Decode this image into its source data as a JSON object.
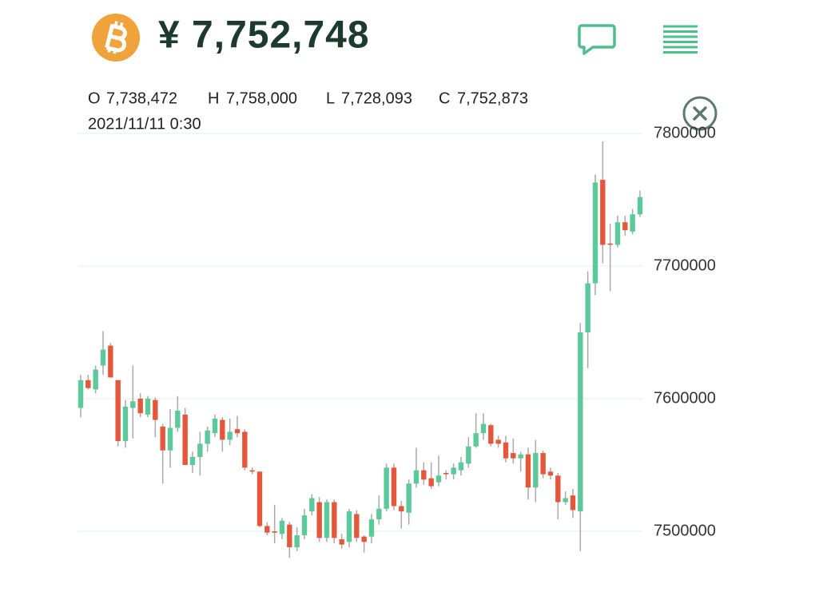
{
  "header": {
    "price": "¥ 7,752,748"
  },
  "ohlc": [
    {
      "label": "O",
      "value": "7,738,472"
    },
    {
      "label": "H",
      "value": "7,758,000"
    },
    {
      "label": "L",
      "value": "7,728,093"
    },
    {
      "label": "C",
      "value": "7,752,873"
    }
  ],
  "timestamp": "2021/11/11 0:30",
  "chart_data": {
    "type": "candlestick",
    "up_color": "#5cc99b",
    "down_color": "#e4573a",
    "wick_color": "#a9a9a9",
    "grid": true,
    "ylim": [
      7480000,
      7800000
    ],
    "yticks": [
      7500000,
      7600000,
      7700000,
      7800000
    ],
    "open": [
      7593000,
      7614000,
      7607000,
      7625000,
      7640000,
      7614000,
      7568000,
      7593000,
      7600000,
      7588000,
      7599000,
      7579000,
      7561000,
      7578000,
      7588000,
      7550000,
      7556000,
      7566000,
      7574000,
      7584000,
      7569000,
      7577000,
      7575000,
      7546000,
      7545000,
      7504000,
      7500000,
      7498000,
      7505000,
      7488000,
      7497000,
      7515000,
      7522000,
      7495000,
      7522000,
      7494000,
      7492000,
      7513000,
      7496000,
      7496000,
      7509000,
      7517000,
      7548000,
      7519000,
      7514000,
      7536000,
      7546000,
      7540000,
      7537000,
      7544000,
      7543000,
      7546000,
      7551000,
      7564000,
      7574000,
      7580000,
      7569000,
      7567000,
      7559000,
      7555000,
      7558000,
      7533000,
      7559000,
      7545000,
      7542000,
      7522000,
      7527000,
      7515000,
      7650000,
      7687000,
      7765000,
      7717000,
      7716000,
      7733000,
      7726000,
      7739000
    ],
    "high": [
      7618000,
      7618000,
      7625000,
      7651000,
      7642000,
      7614000,
      7599000,
      7625000,
      7604000,
      7602000,
      7601000,
      7581000,
      7592000,
      7602000,
      7593000,
      7560000,
      7575000,
      7579000,
      7588000,
      7586000,
      7585000,
      7587000,
      7577000,
      7548000,
      7545000,
      7507000,
      7520000,
      7510000,
      7507000,
      7503000,
      7517000,
      7528000,
      7526000,
      7524000,
      7524000,
      7498000,
      7517000,
      7516000,
      7497000,
      7513000,
      7527000,
      7551000,
      7551000,
      7523000,
      7539000,
      7563000,
      7552000,
      7552000,
      7557000,
      7546000,
      7551000,
      7556000,
      7571000,
      7589000,
      7589000,
      7581000,
      7572000,
      7572000,
      7570000,
      7560000,
      7563000,
      7569000,
      7561000,
      7548000,
      7544000,
      7530000,
      7532000,
      7657000,
      7696000,
      7769000,
      7794000,
      7732000,
      7738000,
      7738000,
      7743000,
      7757000
    ],
    "low": [
      7586000,
      7607000,
      7604000,
      7618000,
      7616000,
      7564000,
      7563000,
      7570000,
      7586000,
      7586000,
      7571000,
      7536000,
      7548000,
      7575000,
      7550000,
      7544000,
      7542000,
      7560000,
      7571000,
      7560000,
      7565000,
      7571000,
      7546000,
      7543000,
      7503000,
      7497000,
      7491000,
      7494000,
      7480000,
      7485000,
      7494000,
      7512000,
      7492000,
      7492000,
      7491000,
      7487000,
      7488000,
      7492000,
      7484000,
      7491000,
      7505000,
      7515000,
      7516000,
      7502000,
      7505000,
      7533000,
      7535000,
      7532000,
      7534000,
      7539000,
      7539000,
      7542000,
      7548000,
      7563000,
      7569000,
      7564000,
      7563000,
      7552000,
      7551000,
      7545000,
      7524000,
      7522000,
      7540000,
      7539000,
      7509000,
      7520000,
      7510000,
      7485000,
      7623000,
      7678000,
      7702000,
      7681000,
      7714000,
      7723000,
      7724000,
      7737000
    ],
    "close": [
      7614000,
      7608000,
      7622000,
      7637000,
      7616000,
      7568000,
      7594000,
      7598000,
      7589000,
      7600000,
      7584000,
      7561000,
      7578000,
      7591000,
      7550000,
      7556000,
      7566000,
      7576000,
      7585000,
      7569000,
      7575000,
      7574000,
      7548000,
      7545000,
      7504000,
      7499000,
      7499000,
      7508000,
      7488000,
      7497000,
      7512000,
      7525000,
      7495000,
      7522000,
      7495000,
      7490000,
      7515000,
      7495000,
      7492000,
      7509000,
      7517000,
      7548000,
      7519000,
      7515000,
      7536000,
      7546000,
      7539000,
      7534000,
      7542000,
      7543000,
      7548000,
      7552000,
      7564000,
      7574000,
      7581000,
      7566000,
      7566000,
      7555000,
      7555000,
      7558000,
      7533000,
      7559000,
      7543000,
      7542000,
      7522000,
      7525000,
      7516000,
      7650000,
      7687000,
      7763000,
      7716000,
      7716000,
      7733000,
      7727000,
      7739000,
      7752000
    ]
  }
}
